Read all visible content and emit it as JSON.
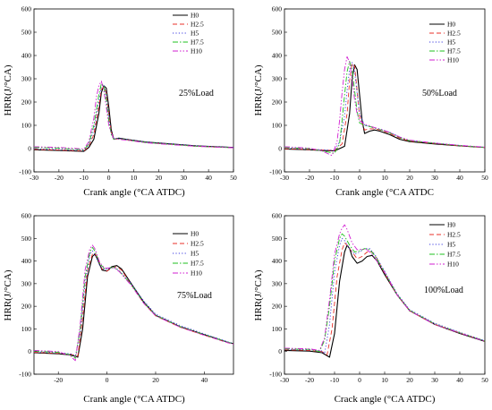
{
  "colors": {
    "H0": "#000000",
    "H2.5": "#e8312a",
    "H5": "#3a3ae0",
    "H7.5": "#1fc01f",
    "H10": "#d21fd2"
  },
  "chart_data": [
    {
      "type": "line",
      "annotation": "25%Load",
      "xlabel": "Crank angle (°CA ATDC)",
      "ylabel": "HRR(J/°CA)",
      "xlim": [
        -30,
        50
      ],
      "ylim": [
        -100,
        600
      ],
      "xticks": [
        -30,
        -20,
        -10,
        0,
        10,
        20,
        30,
        40,
        50
      ],
      "yticks": [
        -100,
        0,
        100,
        200,
        300,
        400,
        500,
        600
      ],
      "grid": false,
      "legend_position": "top-center",
      "series": [
        {
          "name": "H0",
          "x": [
            -30,
            -20,
            -15,
            -10,
            -8,
            -6,
            -4,
            -3,
            -2,
            -1,
            0,
            1,
            2,
            4,
            8,
            15,
            25,
            35,
            50
          ],
          "y": [
            -5,
            -8,
            -10,
            -12,
            5,
            40,
            150,
            240,
            270,
            260,
            180,
            80,
            40,
            45,
            38,
            28,
            20,
            12,
            5
          ]
        },
        {
          "name": "H2.5",
          "x": [
            -30,
            -20,
            -15,
            -10,
            -8,
            -6,
            -4,
            -3,
            -2,
            -1,
            0,
            1,
            2,
            4,
            8,
            15,
            25,
            35,
            50
          ],
          "y": [
            -3,
            -6,
            -8,
            -10,
            10,
            60,
            180,
            255,
            265,
            240,
            150,
            70,
            40,
            42,
            36,
            26,
            18,
            10,
            4
          ]
        },
        {
          "name": "H5",
          "x": [
            -30,
            -20,
            -15,
            -10,
            -8,
            -6,
            -4,
            -3,
            -2,
            -1,
            0,
            1,
            2,
            4,
            8,
            15,
            25,
            35,
            50
          ],
          "y": [
            0,
            -3,
            -5,
            -8,
            15,
            80,
            200,
            270,
            275,
            230,
            140,
            65,
            42,
            44,
            38,
            28,
            20,
            12,
            5
          ]
        },
        {
          "name": "H7.5",
          "x": [
            -30,
            -20,
            -15,
            -10,
            -8,
            -6,
            -4,
            -3,
            -2,
            -1,
            0,
            1,
            2,
            4,
            8,
            15,
            25,
            35,
            50
          ],
          "y": [
            5,
            2,
            -2,
            -5,
            20,
            100,
            230,
            280,
            270,
            210,
            120,
            60,
            40,
            42,
            36,
            26,
            18,
            10,
            4
          ]
        },
        {
          "name": "H10",
          "x": [
            -30,
            -20,
            -15,
            -10,
            -8,
            -6,
            -5,
            -4,
            -3,
            -2,
            -1,
            0,
            2,
            4,
            8,
            15,
            25,
            35,
            50
          ],
          "y": [
            8,
            5,
            2,
            -2,
            30,
            130,
            220,
            270,
            290,
            250,
            180,
            100,
            40,
            40,
            35,
            25,
            17,
            10,
            4
          ]
        }
      ]
    },
    {
      "type": "line",
      "annotation": "50%Load",
      "xlabel": "Crank angle (°CA ATDC",
      "ylabel": "HRR(J/°CA)",
      "xlim": [
        -30,
        50
      ],
      "ylim": [
        -100,
        600
      ],
      "xticks": [
        -30,
        -20,
        -10,
        0,
        10,
        20,
        30,
        40,
        50
      ],
      "yticks": [
        -100,
        0,
        100,
        200,
        300,
        400,
        500,
        600
      ],
      "grid": false,
      "legend_position": "top-right",
      "series": [
        {
          "name": "H0",
          "x": [
            -30,
            -20,
            -15,
            -10,
            -6,
            -4,
            -3,
            -2,
            -1,
            0,
            1,
            2,
            4,
            6,
            8,
            12,
            16,
            20,
            30,
            40,
            50
          ],
          "y": [
            -2,
            -5,
            -8,
            -10,
            10,
            150,
            300,
            360,
            340,
            230,
            120,
            65,
            75,
            80,
            75,
            60,
            40,
            30,
            20,
            12,
            5
          ]
        },
        {
          "name": "H2.5",
          "x": [
            -30,
            -20,
            -15,
            -10,
            -7,
            -5,
            -4,
            -3,
            -2,
            -1,
            0,
            2,
            4,
            6,
            8,
            12,
            16,
            20,
            30,
            40,
            50
          ],
          "y": [
            0,
            -4,
            -6,
            -8,
            20,
            150,
            290,
            365,
            355,
            250,
            140,
            80,
            85,
            85,
            80,
            65,
            45,
            32,
            22,
            12,
            5
          ]
        },
        {
          "name": "H5",
          "x": [
            -30,
            -20,
            -15,
            -10,
            -8,
            -6,
            -5,
            -4,
            -3,
            -2,
            -1,
            0,
            2,
            4,
            6,
            8,
            12,
            16,
            20,
            30,
            40,
            50
          ],
          "y": [
            3,
            -2,
            -5,
            -8,
            30,
            140,
            250,
            340,
            370,
            330,
            240,
            150,
            100,
            95,
            90,
            85,
            70,
            50,
            35,
            24,
            14,
            6
          ]
        },
        {
          "name": "H7.5",
          "x": [
            -30,
            -20,
            -15,
            -10,
            -8,
            -7,
            -6,
            -5,
            -4,
            -3,
            -2,
            -1,
            0,
            2,
            4,
            6,
            8,
            12,
            16,
            20,
            30,
            40,
            50
          ],
          "y": [
            5,
            0,
            -10,
            -20,
            20,
            120,
            230,
            330,
            375,
            340,
            250,
            160,
            110,
            100,
            95,
            88,
            82,
            68,
            48,
            34,
            23,
            13,
            5
          ]
        },
        {
          "name": "H10",
          "x": [
            -30,
            -20,
            -15,
            -11,
            -9,
            -8,
            -7,
            -6,
            -5,
            -4,
            -3,
            -2,
            -1,
            0,
            2,
            4,
            6,
            8,
            12,
            16,
            20,
            30,
            40,
            50
          ],
          "y": [
            8,
            2,
            -10,
            -30,
            30,
            120,
            240,
            340,
            395,
            370,
            300,
            210,
            150,
            120,
            105,
            98,
            90,
            84,
            70,
            50,
            36,
            24,
            14,
            6
          ]
        }
      ]
    },
    {
      "type": "line",
      "annotation": "75%Load",
      "xlabel": "Crank angle (°CA ATDC)",
      "ylabel": "HRR(J/°CA)",
      "xlim": [
        -30,
        52
      ],
      "ylim": [
        -100,
        600
      ],
      "xticks": [
        -20,
        0,
        20,
        40
      ],
      "yticks": [
        -100,
        0,
        100,
        200,
        300,
        400,
        500,
        600
      ],
      "grid": false,
      "legend_position": "top-center",
      "series": [
        {
          "name": "H0",
          "x": [
            -30,
            -20,
            -15,
            -12,
            -10,
            -8,
            -6,
            -5,
            -4,
            -2,
            0,
            2,
            4,
            6,
            10,
            15,
            20,
            30,
            40,
            50,
            52
          ],
          "y": [
            -5,
            -10,
            -15,
            -25,
            100,
            330,
            420,
            430,
            410,
            360,
            355,
            375,
            380,
            365,
            300,
            220,
            160,
            110,
            75,
            40,
            35
          ]
        },
        {
          "name": "H2.5",
          "x": [
            -30,
            -20,
            -15,
            -12,
            -10,
            -8,
            -6,
            -5,
            -4,
            -2,
            0,
            2,
            4,
            6,
            10,
            15,
            20,
            30,
            40,
            50,
            52
          ],
          "y": [
            -3,
            -8,
            -12,
            -20,
            150,
            360,
            430,
            435,
            415,
            365,
            355,
            370,
            375,
            360,
            295,
            215,
            158,
            108,
            72,
            38,
            33
          ]
        },
        {
          "name": "H5",
          "x": [
            -30,
            -20,
            -15,
            -13,
            -11,
            -9,
            -7,
            -6,
            -5,
            -3,
            -1,
            1,
            3,
            5,
            10,
            15,
            20,
            30,
            40,
            50,
            52
          ],
          "y": [
            0,
            -5,
            -10,
            -20,
            80,
            300,
            430,
            445,
            430,
            380,
            360,
            368,
            372,
            358,
            300,
            225,
            165,
            115,
            78,
            42,
            36
          ]
        },
        {
          "name": "H7.5",
          "x": [
            -30,
            -20,
            -15,
            -13,
            -11,
            -9,
            -7,
            -6,
            -5,
            -3,
            -1,
            1,
            3,
            5,
            10,
            15,
            20,
            30,
            40,
            50,
            52
          ],
          "y": [
            2,
            -3,
            -15,
            -30,
            100,
            330,
            440,
            460,
            445,
            390,
            365,
            370,
            372,
            356,
            295,
            218,
            160,
            110,
            75,
            40,
            35
          ]
        },
        {
          "name": "H10",
          "x": [
            -30,
            -20,
            -15,
            -13,
            -11,
            -9,
            -7,
            -6,
            -5,
            -3,
            -1,
            1,
            3,
            5,
            10,
            15,
            20,
            30,
            40,
            50,
            52
          ],
          "y": [
            5,
            0,
            -20,
            -40,
            120,
            360,
            455,
            470,
            455,
            395,
            368,
            370,
            370,
            354,
            292,
            215,
            158,
            108,
            72,
            38,
            33
          ]
        }
      ]
    },
    {
      "type": "line",
      "annotation": "100%Load",
      "xlabel": "Crack angle (°CA ATDC)",
      "ylabel": "HRR(J/°CA)",
      "xlim": [
        -30,
        50
      ],
      "ylim": [
        -100,
        600
      ],
      "xticks": [
        -30,
        -20,
        -10,
        0,
        10,
        20,
        30,
        40,
        50
      ],
      "yticks": [
        -100,
        0,
        100,
        200,
        300,
        400,
        500,
        600
      ],
      "grid": false,
      "legend_position": "top-right",
      "series": [
        {
          "name": "H0",
          "x": [
            -30,
            -20,
            -15,
            -12,
            -10,
            -8,
            -6,
            -5,
            -4,
            -3,
            -1,
            1,
            3,
            5,
            7,
            10,
            15,
            20,
            30,
            40,
            50
          ],
          "y": [
            5,
            2,
            -5,
            -25,
            80,
            310,
            440,
            470,
            455,
            420,
            390,
            400,
            420,
            425,
            400,
            340,
            250,
            180,
            120,
            80,
            45
          ]
        },
        {
          "name": "H2.5",
          "x": [
            -30,
            -20,
            -15,
            -13,
            -11,
            -9,
            -7,
            -6,
            -5,
            -3,
            -1,
            1,
            3,
            5,
            7,
            10,
            15,
            20,
            30,
            40,
            50
          ],
          "y": [
            8,
            5,
            0,
            -15,
            100,
            330,
            450,
            480,
            470,
            440,
            410,
            420,
            440,
            440,
            410,
            345,
            250,
            180,
            120,
            82,
            46
          ]
        },
        {
          "name": "H5",
          "x": [
            -30,
            -20,
            -15,
            -14,
            -12,
            -10,
            -8,
            -7,
            -6,
            -4,
            -2,
            0,
            2,
            4,
            6,
            10,
            15,
            20,
            30,
            40,
            50
          ],
          "y": [
            10,
            8,
            3,
            -10,
            120,
            350,
            470,
            500,
            490,
            455,
            430,
            440,
            455,
            455,
            430,
            355,
            255,
            185,
            125,
            85,
            48
          ]
        },
        {
          "name": "H7.5",
          "x": [
            -30,
            -20,
            -16,
            -14,
            -12,
            -10,
            -8,
            -7,
            -6,
            -4,
            -2,
            0,
            2,
            4,
            6,
            10,
            15,
            20,
            30,
            40,
            50
          ],
          "y": [
            12,
            10,
            0,
            50,
            200,
            400,
            500,
            520,
            510,
            470,
            440,
            445,
            455,
            450,
            425,
            350,
            252,
            182,
            122,
            83,
            47
          ]
        },
        {
          "name": "H10",
          "x": [
            -30,
            -20,
            -16,
            -14,
            -12,
            -10,
            -8,
            -7,
            -6,
            -5,
            -3,
            -1,
            1,
            3,
            5,
            10,
            15,
            20,
            30,
            40,
            50
          ],
          "y": [
            15,
            12,
            5,
            60,
            230,
            430,
            520,
            545,
            560,
            540,
            480,
            450,
            452,
            450,
            430,
            350,
            250,
            180,
            120,
            82,
            46
          ]
        }
      ]
    }
  ]
}
